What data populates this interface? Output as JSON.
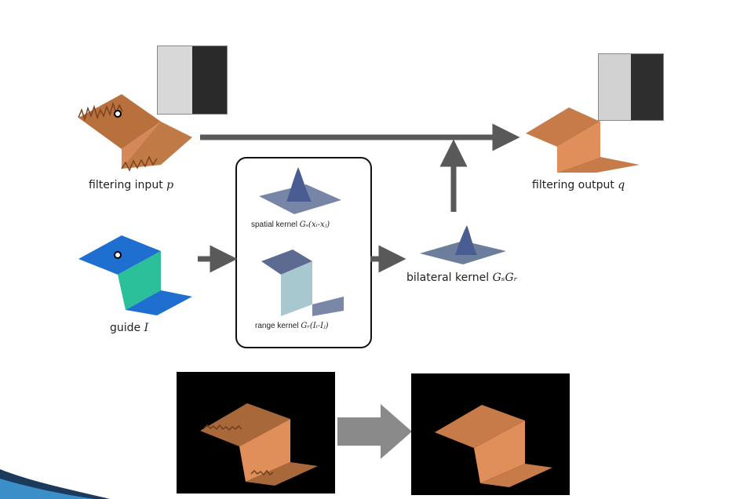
{
  "labels": {
    "filtering_input": "filtering input",
    "filtering_input_var": "p",
    "filtering_output": "filtering output",
    "filtering_output_var": "q",
    "guide": "guide",
    "guide_var": "I",
    "spatial_kernel": "spatial kernel",
    "spatial_kernel_math": "Gₛ(xᵢ-xⱼ)",
    "range_kernel": "range kernel",
    "range_kernel_math": "Gᵣ(Iᵢ-Iⱼ)",
    "bilateral_kernel": "bilateral kernel",
    "bilateral_kernel_math": "GₛGᵣ"
  },
  "colors": {
    "arrow": "#595959",
    "noisy_terrain": "#b8703c",
    "smooth_terrain": "#d5895a",
    "guide_blue": "#1f6fd1",
    "guide_teal": "#2bbf9a",
    "kernel_gray": "#6d7d9c",
    "slide_bar": "#1b3a5c"
  }
}
